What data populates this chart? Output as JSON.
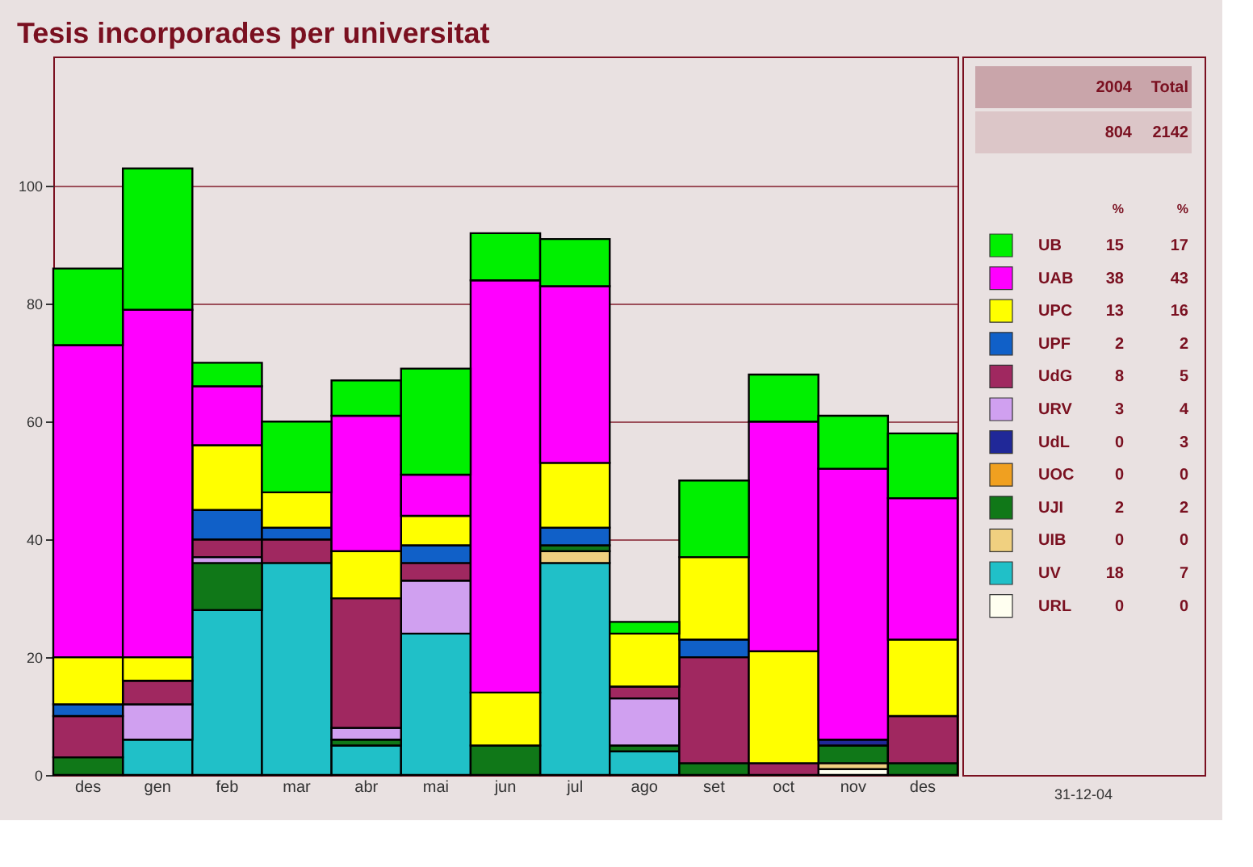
{
  "chart_data": {
    "type": "bar",
    "stacked": true,
    "title": "Tesis incorporades per universitat",
    "categories": [
      "des",
      "gen",
      "feb",
      "mar",
      "abr",
      "mai",
      "jun",
      "jul",
      "ago",
      "set",
      "oct",
      "nov",
      "des"
    ],
    "series": [
      {
        "name": "URL",
        "color": "#fffff0",
        "values": [
          null,
          null,
          null,
          null,
          null,
          null,
          null,
          null,
          null,
          null,
          null,
          1,
          null
        ]
      },
      {
        "name": "UV",
        "color": "#20c0c8",
        "values": [
          null,
          6,
          28,
          36,
          5,
          24,
          null,
          36,
          4,
          null,
          null,
          null,
          null
        ]
      },
      {
        "name": "UIB",
        "color": "#f0d080",
        "values": [
          null,
          null,
          null,
          null,
          null,
          null,
          null,
          2,
          null,
          null,
          null,
          1,
          null
        ]
      },
      {
        "name": "UJI",
        "color": "#107818",
        "values": [
          3,
          null,
          8,
          null,
          1,
          null,
          5,
          1,
          1,
          2,
          null,
          3,
          2
        ]
      },
      {
        "name": "UOC",
        "color": "#f0a020",
        "values": [
          null,
          null,
          null,
          null,
          null,
          null,
          null,
          null,
          null,
          null,
          null,
          null,
          null
        ]
      },
      {
        "name": "UdL",
        "color": "#202898",
        "values": [
          null,
          null,
          null,
          null,
          null,
          null,
          null,
          null,
          null,
          null,
          null,
          1,
          null
        ]
      },
      {
        "name": "URV",
        "color": "#d0a0f0",
        "values": [
          null,
          6,
          1,
          null,
          2,
          9,
          null,
          null,
          8,
          null,
          null,
          null,
          null
        ]
      },
      {
        "name": "UdG",
        "color": "#a02860",
        "values": [
          7,
          4,
          3,
          4,
          22,
          3,
          null,
          null,
          2,
          18,
          2,
          null,
          8
        ]
      },
      {
        "name": "UPF",
        "color": "#1060c8",
        "values": [
          2,
          null,
          5,
          2,
          null,
          3,
          null,
          3,
          null,
          3,
          null,
          null,
          null
        ]
      },
      {
        "name": "UPC",
        "color": "#ffff00",
        "values": [
          8,
          4,
          11,
          6,
          8,
          5,
          9,
          11,
          9,
          14,
          19,
          null,
          13
        ]
      },
      {
        "name": "UAB",
        "color": "#ff00ff",
        "values": [
          53,
          59,
          10,
          null,
          23,
          7,
          70,
          30,
          null,
          null,
          39,
          46,
          24
        ]
      },
      {
        "name": "UB",
        "color": "#00f000",
        "values": [
          13,
          24,
          4,
          12,
          6,
          18,
          8,
          8,
          2,
          13,
          8,
          9,
          11
        ]
      }
    ],
    "ylim": [
      0,
      122
    ],
    "yticks": [
      0,
      20,
      40,
      60,
      80,
      100
    ],
    "grid": "y",
    "legend": "right",
    "annotations": [
      "2004",
      "Total",
      "804",
      "2142",
      "%",
      "%",
      "15",
      "17",
      "38",
      "43",
      "13",
      "16",
      "2",
      "2",
      "8",
      "5",
      "3",
      "4",
      "0",
      "3",
      "0",
      "0",
      "2",
      "2",
      "0",
      "0",
      "18",
      "7",
      "0",
      "0",
      "31-12-04"
    ]
  }
}
